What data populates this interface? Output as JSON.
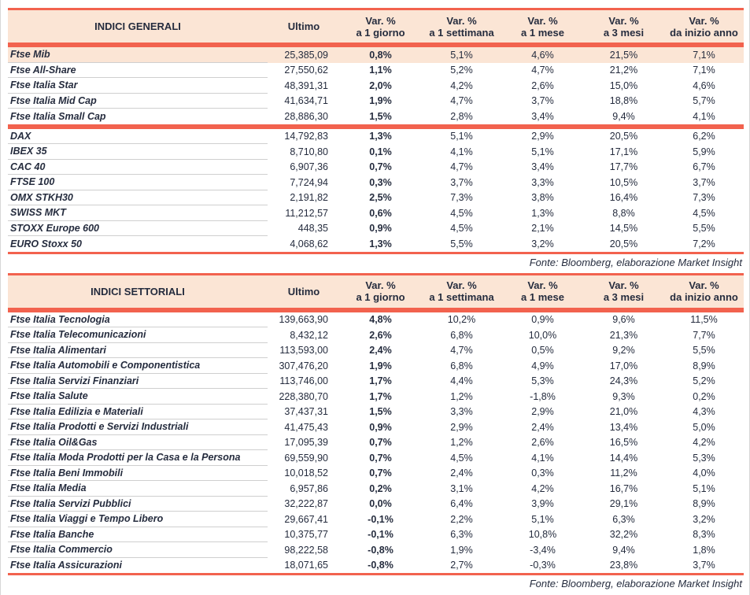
{
  "colors": {
    "accent": "#f2624e",
    "header_bg": "#fbe5d5",
    "text": "#252c3e",
    "separator": "#cfcfcf"
  },
  "tables": [
    {
      "title": "INDICI GENERALI",
      "ultimo_label": "Ultimo",
      "var_columns": [
        {
          "line1": "Var. %",
          "line2": "a 1 giorno"
        },
        {
          "line1": "Var. %",
          "line2": "a 1 settimana"
        },
        {
          "line1": "Var. %",
          "line2": "a 1 mese"
        },
        {
          "line1": "Var. %",
          "line2": "a 3 mesi"
        },
        {
          "line1": "Var. %",
          "line2": "da inizio anno"
        }
      ],
      "groups": [
        {
          "rows": [
            {
              "name": "Ftse Mib",
              "ultimo": "25,385,09",
              "d1": "0,8%",
              "w1": "5,1%",
              "m1": "4,6%",
              "m3": "21,5%",
              "ytd": "7,1%",
              "highlight": true
            },
            {
              "name": "Ftse All-Share",
              "ultimo": "27,550,62",
              "d1": "1,1%",
              "w1": "5,2%",
              "m1": "4,7%",
              "m3": "21,2%",
              "ytd": "7,1%"
            },
            {
              "name": "Ftse Italia Star",
              "ultimo": "48,391,31",
              "d1": "2,0%",
              "w1": "4,2%",
              "m1": "2,6%",
              "m3": "15,0%",
              "ytd": "4,6%"
            },
            {
              "name": "Ftse Italia Mid Cap",
              "ultimo": "41,634,71",
              "d1": "1,9%",
              "w1": "4,7%",
              "m1": "3,7%",
              "m3": "18,8%",
              "ytd": "5,7%"
            },
            {
              "name": "Ftse Italia Small Cap",
              "ultimo": "28,886,30",
              "d1": "1,5%",
              "w1": "2,8%",
              "m1": "3,4%",
              "m3": "9,4%",
              "ytd": "4,1%"
            }
          ]
        },
        {
          "rows": [
            {
              "name": "DAX",
              "ultimo": "14,792,83",
              "d1": "1,3%",
              "w1": "5,1%",
              "m1": "2,9%",
              "m3": "20,5%",
              "ytd": "6,2%"
            },
            {
              "name": "IBEX 35",
              "ultimo": "8,710,80",
              "d1": "0,1%",
              "w1": "4,1%",
              "m1": "5,1%",
              "m3": "17,1%",
              "ytd": "5,9%"
            },
            {
              "name": "CAC 40",
              "ultimo": "6,907,36",
              "d1": "0,7%",
              "w1": "4,7%",
              "m1": "3,4%",
              "m3": "17,7%",
              "ytd": "6,7%"
            },
            {
              "name": "FTSE 100",
              "ultimo": "7,724,94",
              "d1": "0,3%",
              "w1": "3,7%",
              "m1": "3,3%",
              "m3": "10,5%",
              "ytd": "3,7%"
            },
            {
              "name": "OMX STKH30",
              "ultimo": "2,191,82",
              "d1": "2,5%",
              "w1": "7,3%",
              "m1": "3,8%",
              "m3": "16,4%",
              "ytd": "7,3%"
            },
            {
              "name": "SWISS MKT",
              "ultimo": "11,212,57",
              "d1": "0,6%",
              "w1": "4,5%",
              "m1": "1,3%",
              "m3": "8,8%",
              "ytd": "4,5%"
            },
            {
              "name": "STOXX Europe 600",
              "ultimo": "448,35",
              "d1": "0,9%",
              "w1": "4,5%",
              "m1": "2,1%",
              "m3": "14,5%",
              "ytd": "5,5%"
            },
            {
              "name": "EURO Stoxx 50",
              "ultimo": "4,068,62",
              "d1": "1,3%",
              "w1": "5,5%",
              "m1": "3,2%",
              "m3": "20,5%",
              "ytd": "7,2%"
            }
          ]
        }
      ],
      "fonte": "Fonte: Bloomberg, elaborazione Market Insight"
    },
    {
      "title": "INDICI SETTORIALI",
      "ultimo_label": "Ultimo",
      "var_columns": [
        {
          "line1": "Var. %",
          "line2": "a 1 giorno"
        },
        {
          "line1": "Var. %",
          "line2": "a 1 settimana"
        },
        {
          "line1": "Var. %",
          "line2": "a 1 mese"
        },
        {
          "line1": "Var. %",
          "line2": "a 3 mesi"
        },
        {
          "line1": "Var. %",
          "line2": "da inizio anno"
        }
      ],
      "groups": [
        {
          "rows": [
            {
              "name": "Ftse Italia Tecnologia",
              "ultimo": "139,663,90",
              "d1": "4,8%",
              "w1": "10,2%",
              "m1": "0,9%",
              "m3": "9,6%",
              "ytd": "11,5%"
            },
            {
              "name": "Ftse Italia Telecomunicazioni",
              "ultimo": "8,432,12",
              "d1": "2,6%",
              "w1": "6,8%",
              "m1": "10,0%",
              "m3": "21,3%",
              "ytd": "7,7%"
            },
            {
              "name": "Ftse Italia Alimentari",
              "ultimo": "113,593,00",
              "d1": "2,4%",
              "w1": "4,7%",
              "m1": "0,5%",
              "m3": "9,2%",
              "ytd": "5,5%"
            },
            {
              "name": "Ftse Italia Automobili e Componentistica",
              "ultimo": "307,476,20",
              "d1": "1,9%",
              "w1": "6,8%",
              "m1": "4,9%",
              "m3": "17,0%",
              "ytd": "8,9%"
            },
            {
              "name": "Ftse Italia Servizi Finanziari",
              "ultimo": "113,746,00",
              "d1": "1,7%",
              "w1": "4,4%",
              "m1": "5,3%",
              "m3": "24,3%",
              "ytd": "5,2%"
            },
            {
              "name": "Ftse Italia Salute",
              "ultimo": "228,380,70",
              "d1": "1,7%",
              "w1": "1,2%",
              "m1": "-1,8%",
              "m3": "9,3%",
              "ytd": "0,2%"
            },
            {
              "name": "Ftse Italia Edilizia e Materiali",
              "ultimo": "37,437,31",
              "d1": "1,5%",
              "w1": "3,3%",
              "m1": "2,9%",
              "m3": "21,0%",
              "ytd": "4,3%"
            },
            {
              "name": "Ftse Italia Prodotti e Servizi Industriali",
              "ultimo": "41,475,43",
              "d1": "0,9%",
              "w1": "2,9%",
              "m1": "2,4%",
              "m3": "13,4%",
              "ytd": "5,0%"
            },
            {
              "name": "Ftse Italia Oil&Gas",
              "ultimo": "17,095,39",
              "d1": "0,7%",
              "w1": "1,2%",
              "m1": "2,6%",
              "m3": "16,5%",
              "ytd": "4,2%"
            },
            {
              "name": "Ftse Italia Moda Prodotti per la Casa e la Persona",
              "ultimo": "69,559,90",
              "d1": "0,7%",
              "w1": "4,5%",
              "m1": "4,1%",
              "m3": "14,4%",
              "ytd": "5,3%"
            },
            {
              "name": "Ftse Italia Beni Immobili",
              "ultimo": "10,018,52",
              "d1": "0,7%",
              "w1": "2,4%",
              "m1": "0,3%",
              "m3": "11,2%",
              "ytd": "4,0%"
            },
            {
              "name": "Ftse Italia Media",
              "ultimo": "6,957,86",
              "d1": "0,2%",
              "w1": "3,1%",
              "m1": "4,2%",
              "m3": "16,7%",
              "ytd": "5,1%"
            },
            {
              "name": "Ftse Italia Servizi Pubblici",
              "ultimo": "32,222,87",
              "d1": "0,0%",
              "w1": "6,4%",
              "m1": "3,9%",
              "m3": "29,1%",
              "ytd": "8,9%"
            },
            {
              "name": "Ftse Italia Viaggi e Tempo Libero",
              "ultimo": "29,667,41",
              "d1": "-0,1%",
              "w1": "2,2%",
              "m1": "5,1%",
              "m3": "6,3%",
              "ytd": "3,2%"
            },
            {
              "name": "Ftse Italia Banche",
              "ultimo": "10,375,77",
              "d1": "-0,1%",
              "w1": "6,3%",
              "m1": "10,8%",
              "m3": "32,2%",
              "ytd": "8,3%"
            },
            {
              "name": "Ftse Italia Commercio",
              "ultimo": "98,222,58",
              "d1": "-0,8%",
              "w1": "1,9%",
              "m1": "-3,4%",
              "m3": "9,4%",
              "ytd": "1,8%"
            },
            {
              "name": "Ftse Italia Assicurazioni",
              "ultimo": "18,071,65",
              "d1": "-0,8%",
              "w1": "2,7%",
              "m1": "-0,3%",
              "m3": "23,8%",
              "ytd": "3,7%"
            }
          ]
        }
      ],
      "fonte": "Fonte: Bloomberg, elaborazione Market Insight"
    }
  ]
}
